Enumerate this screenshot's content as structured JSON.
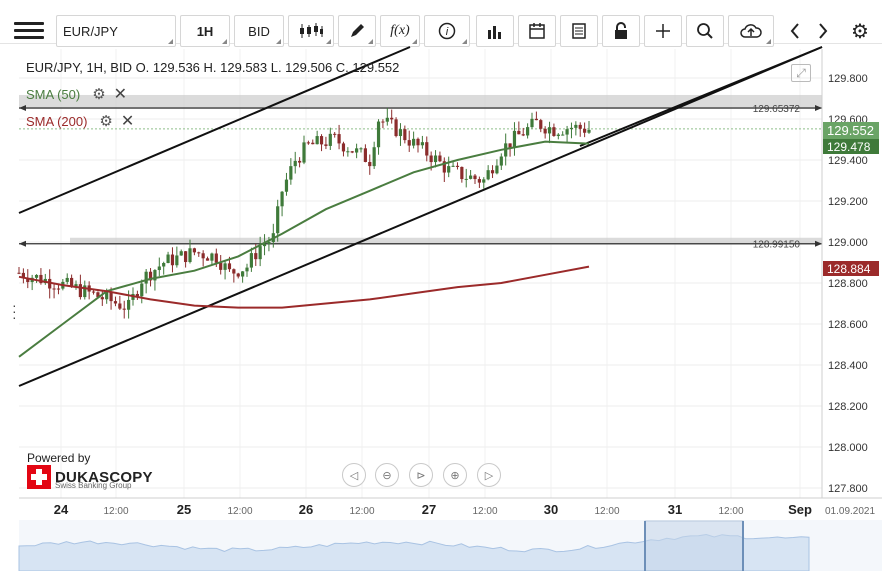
{
  "toolbar": {
    "instrument": "EUR/JPY",
    "period": "1H",
    "side": "BID",
    "fx_label": "f(x)"
  },
  "header": {
    "ohlc": "EUR/JPY, 1H, BID    O. 129.536 H. 129.583 L. 129.506 C. 129.552"
  },
  "indicators": [
    {
      "label": "SMA (50)",
      "color": "#4a7d40"
    },
    {
      "label": "SMA (200)",
      "color": "#9b2a2a"
    }
  ],
  "levels": [
    {
      "label": "129.65372",
      "value": 129.65372
    },
    {
      "label": "128.99150",
      "value": 128.9915
    }
  ],
  "price_axis": {
    "ticks": [
      "129.800",
      "129.600",
      "129.400",
      "129.200",
      "129.000",
      "128.800",
      "128.600",
      "128.400",
      "128.200",
      "128.000",
      "127.800"
    ],
    "current_price": "129.552",
    "sma50_value": "129.478",
    "sma200_value": "128.884"
  },
  "time_axis": {
    "labels": [
      "24",
      "12:00",
      "25",
      "12:00",
      "26",
      "12:00",
      "27",
      "12:00",
      "30",
      "12:00",
      "31",
      "12:00",
      "Sep"
    ],
    "date_label": "01.09.2021"
  },
  "branding": {
    "powered_by": "Powered by",
    "name": "DUKASCOPY",
    "tagline": "Swiss Banking Group"
  },
  "colors": {
    "bull": "#3f7a3a",
    "bear": "#8b2c2c",
    "sma50": "#4a7d40",
    "sma200": "#9b2a2a",
    "level_band": "#cfcfcf",
    "current_tag": "#6aa466",
    "sma50_tag": "#3f7a3a",
    "sma200_tag": "#9b2a2a"
  },
  "chart_data": {
    "type": "line",
    "title": "",
    "xlabel": "",
    "ylabel": "",
    "ylim": [
      127.75,
      129.9
    ],
    "series": [
      {
        "name": "SMA (50)",
        "x": [
          0,
          10,
          20,
          30,
          40,
          50,
          60,
          70,
          80,
          90,
          100,
          110,
          120,
          130
        ],
        "values": [
          128.44,
          128.6,
          128.76,
          128.82,
          128.86,
          128.93,
          129.04,
          129.16,
          129.25,
          129.34,
          129.4,
          129.45,
          129.49,
          129.48
        ]
      },
      {
        "name": "SMA (200)",
        "x": [
          0,
          10,
          20,
          30,
          40,
          50,
          60,
          70,
          80,
          90,
          100,
          110,
          120,
          130
        ],
        "values": [
          128.83,
          128.79,
          128.76,
          128.72,
          128.69,
          128.68,
          128.68,
          128.7,
          128.72,
          128.75,
          128.78,
          128.8,
          128.84,
          128.88
        ]
      }
    ]
  }
}
